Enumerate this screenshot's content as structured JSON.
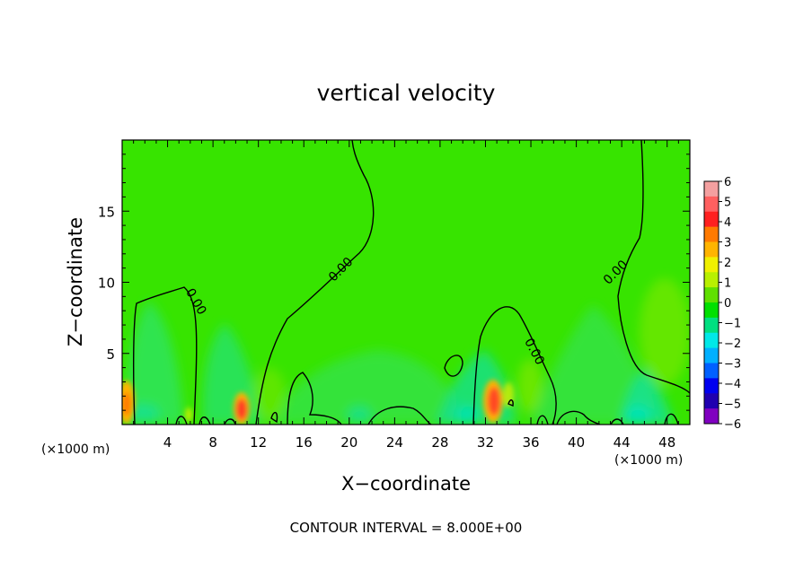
{
  "chart_data": {
    "type": "heatmap",
    "title": "vertical velocity",
    "xlabel": "X−coordinate",
    "ylabel": "Z−coordinate",
    "x_unit": "(×1000 m)",
    "y_unit": "(×1000 m)",
    "xlim": [
      0,
      50
    ],
    "ylim": [
      0,
      20
    ],
    "x_ticks": [
      4,
      8,
      12,
      16,
      20,
      24,
      28,
      32,
      36,
      40,
      44,
      48
    ],
    "x_tick_labels": [
      "4",
      "8",
      "12",
      "16",
      "20",
      "24",
      "28",
      "32",
      "36",
      "40",
      "44",
      "48"
    ],
    "y_ticks": [
      5,
      10,
      15
    ],
    "y_tick_labels": [
      "5",
      "10",
      "15"
    ],
    "colorbar": {
      "levels": [
        6,
        5,
        4,
        3,
        2,
        1,
        0,
        -1,
        -2,
        -3,
        -4,
        -5,
        -6
      ],
      "labels": [
        "6",
        "5",
        "4",
        "3",
        "2",
        "1",
        "0",
        "−1",
        "−2",
        "−3",
        "−4",
        "−5",
        "−6"
      ],
      "colors": [
        "#f4a0a0",
        "#ff6060",
        "#ff2020",
        "#ff7a00",
        "#ffb400",
        "#f0f000",
        "#b8f000",
        "#60e000",
        "#00e000",
        "#00e080",
        "#00e8e8",
        "#00b0ff",
        "#0060ff",
        "#0000f0",
        "#2000b0",
        "#8000c0"
      ]
    },
    "background_value": 0,
    "features": [
      {
        "name": "updraft",
        "x": 10.5,
        "z": 1.0,
        "value": 5
      },
      {
        "name": "updraft",
        "x": 32.8,
        "z": 1.7,
        "value": 4
      },
      {
        "name": "updraft",
        "x": 0.3,
        "z": 1.8,
        "value": 2
      },
      {
        "name": "downdraft",
        "x": 3.0,
        "z": 4.0,
        "value": -1
      },
      {
        "name": "downdraft",
        "x": 30.0,
        "z": 2.5,
        "value": -1
      },
      {
        "name": "downdraft",
        "x": 45.5,
        "z": 1.5,
        "value": -1
      }
    ],
    "contour_labels": [
      {
        "text": "0.00",
        "x": 6.2,
        "z": 8.5
      },
      {
        "text": "0.00",
        "x": 19.5,
        "z": 10.7
      },
      {
        "text": "0.00",
        "x": 36.0,
        "z": 5.0
      },
      {
        "text": "0.00",
        "x": 43.7,
        "z": 10.5
      }
    ],
    "contour_interval_text": "CONTOUR INTERVAL = 8.000E+00"
  },
  "colors": {
    "field_background": "#37e400",
    "contour_line": "#000000"
  }
}
